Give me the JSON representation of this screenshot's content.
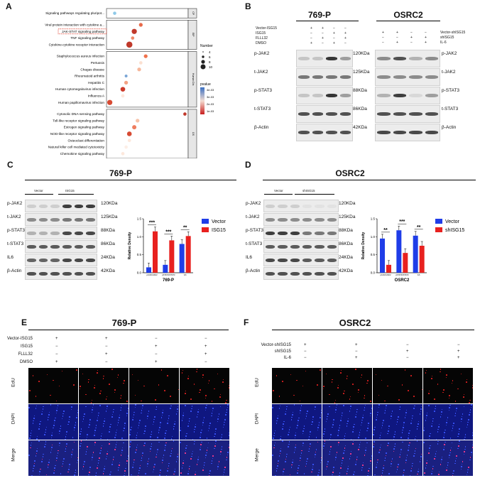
{
  "panels": {
    "A": "A",
    "B": "B",
    "C": "C",
    "D": "D",
    "E": "E",
    "F": "F"
  },
  "panelA": {
    "xlabel": "Enrichment Score",
    "xticks": [
      "3",
      "4",
      "5",
      "6",
      "7"
    ],
    "legend_number_title": "Number",
    "legend_number_values": [
      "4",
      "6",
      "8",
      "10"
    ],
    "legend_pvalue_title": "pvalue",
    "legend_pvalue_values": [
      "4e-03",
      "3e-03",
      "2e-03",
      "1e-03"
    ],
    "groups": [
      "CP",
      "EIP",
      "Human Dis",
      "OS"
    ],
    "pathways": [
      "Signaling pathways regulating pluripot...",
      "Viral protein interaction with cytokine a...",
      "JAK-STAT signaling pathway",
      "TNF signaling pathway",
      "Cytokine-cytokine receptor interaction",
      "Staphylococcus aureus infection",
      "Pertussis",
      "Chagas disease",
      "Rheumatoid arthritis",
      "Hepatitis C",
      "Human cytomegalovirus infection",
      "Influenza A",
      "Human papillomavirus infection",
      "Cytosolic DNA-sensing pathway",
      "Toll-like receptor signaling pathway",
      "Estrogen signaling pathway",
      "NOD-like receptor signaling pathway",
      "Osteoclast differentiation",
      "Natural killer cell mediated cytotoxicity",
      "Chemokine signaling pathway"
    ]
  },
  "panelB": {
    "left_title": "769-P",
    "right_title": "OSRC2",
    "left_conditions": [
      {
        "name": "Vector-ISG15",
        "marks": [
          "+",
          "+",
          "−",
          "−"
        ]
      },
      {
        "name": "ISG15",
        "marks": [
          "−",
          "−",
          "+",
          "+"
        ]
      },
      {
        "name": "FLLL32",
        "marks": [
          "−",
          "+",
          "−",
          "+"
        ]
      },
      {
        "name": "DMSO",
        "marks": [
          "+",
          "−",
          "+",
          "−"
        ]
      }
    ],
    "right_conditions": [
      {
        "name": "Vector-shISG15",
        "marks": [
          "+",
          "+",
          "−",
          "−"
        ]
      },
      {
        "name": "shISG15",
        "marks": [
          "−",
          "−",
          "+",
          "+"
        ]
      },
      {
        "name": "IL-6",
        "marks": [
          "−",
          "+",
          "−",
          "+"
        ]
      }
    ],
    "rows_left": [
      "p-JAK2",
      "t-JAK2",
      "p-STAT3",
      "t-STAT3",
      "β-Actin"
    ],
    "kda": [
      "120KDa",
      "125KDa",
      "88KDa",
      "86KDa",
      "42KDa"
    ],
    "rows_right": [
      "p-JAK2",
      "t-JAK2",
      "p-STAT3",
      "t-STAT3",
      "β-Actin"
    ]
  },
  "panelC": {
    "title": "769-P",
    "group1": "Vector",
    "group2": "ISG15",
    "rows": [
      "p-JAK2",
      "t-JAK2",
      "p-STAT3",
      "t-STAT3",
      "IL6",
      "β-Actin"
    ],
    "kda": [
      "120KDa",
      "125KDa",
      "88KDa",
      "86KDa",
      "24KDa",
      "42KDa"
    ],
    "chart_title": "769-P",
    "ylabel": "Relative Density",
    "legend": [
      "Vector",
      "ISG15"
    ],
    "sig": [
      "***",
      "***",
      "**"
    ]
  },
  "panelD": {
    "title": "OSRC2",
    "group1": "Vector",
    "group2": "shISG15",
    "rows": [
      "p-JAK2",
      "t-JAK2",
      "p-STAT3",
      "t-STAT3",
      "IL6",
      "β-Actin"
    ],
    "kda": [
      "120KDa",
      "125KDa",
      "88KDa",
      "86KDa",
      "24KDa",
      "42KDa"
    ],
    "chart_title": "OSRC2",
    "ylabel": "Relative Density",
    "legend": [
      "Vector",
      "shISG15"
    ],
    "sig": [
      "**",
      "***",
      "**"
    ]
  },
  "panelE": {
    "title": "769-P",
    "conditions": [
      {
        "name": "Vector-ISG15",
        "marks": [
          "+",
          "+",
          "−",
          "−"
        ]
      },
      {
        "name": "ISG15",
        "marks": [
          "−",
          "−",
          "+",
          "+"
        ]
      },
      {
        "name": "FLLL32",
        "marks": [
          "−",
          "+",
          "−",
          "+"
        ]
      },
      {
        "name": "DMSO",
        "marks": [
          "+",
          "−",
          "+",
          "−"
        ]
      }
    ],
    "rows": [
      "EdU",
      "DAPI",
      "Merge"
    ]
  },
  "panelF": {
    "title": "OSRC2",
    "conditions": [
      {
        "name": "Vector-shISG15",
        "marks": [
          "+",
          "+",
          "−",
          "−"
        ]
      },
      {
        "name": "shISG15",
        "marks": [
          "−",
          "−",
          "+",
          "+"
        ]
      },
      {
        "name": "IL-6",
        "marks": [
          "−",
          "+",
          "−",
          "+"
        ]
      }
    ],
    "rows": [
      "EdU",
      "DAPI",
      "Merge"
    ]
  },
  "chart_data": [
    {
      "type": "scatter",
      "xlabel": "Enrichment Score",
      "xlim": [
        2.5,
        7.5
      ],
      "categories": [
        "Signaling pathways regulating pluripot...",
        "Viral protein interaction with cytokine a...",
        "JAK-STAT signaling pathway",
        "TNF signaling pathway",
        "Cytokine-cytokine receptor interaction",
        "Staphylococcus aureus infection",
        "Pertussis",
        "Chagas disease",
        "Rheumatoid arthritis",
        "Hepatitis C",
        "Human cytomegalovirus infection",
        "Influenza A",
        "Human papillomavirus infection",
        "Cytosolic DNA-sensing pathway",
        "Toll-like receptor signaling pathway",
        "Estrogen signaling pathway",
        "NOD-like receptor signaling pathway",
        "Osteoclast differentiation",
        "Natural killer cell mediated cytotoxicity",
        "Chemokine signaling pathway"
      ],
      "x": [
        3.0,
        4.6,
        4.2,
        4.1,
        3.9,
        4.9,
        4.6,
        4.5,
        3.7,
        3.7,
        3.5,
        3.5,
        2.7,
        7.3,
        4.4,
        4.2,
        3.9,
        3.9,
        3.7,
        3.5
      ],
      "size": [
        4,
        5,
        8,
        4,
        10,
        5,
        4,
        5,
        3,
        5,
        7,
        4,
        8,
        4,
        5,
        6,
        7,
        4,
        4,
        4
      ],
      "color": [
        "#8ec9e8",
        "#e86a4a",
        "#c0392b",
        "#f08a6a",
        "#c0392b",
        "#f0724c",
        "#fbe0d0",
        "#f6b79a",
        "#7aa6d6",
        "#f3a283",
        "#cc3a2a",
        "#fde8dc",
        "#d74a33",
        "#c0392b",
        "#f7c2a8",
        "#ee7d5f",
        "#d74a33",
        "#fde8dc",
        "#fdeee6",
        "#fde8dc"
      ]
    },
    {
      "type": "bar",
      "title": "769-P",
      "ylabel": "Relative Density",
      "ylim": [
        0,
        1.5
      ],
      "categories": [
        "pJAK2/tJAK2",
        "pSTAT3/tSTAT3",
        "IL6"
      ],
      "series": [
        {
          "name": "Vector",
          "values": [
            0.15,
            0.22,
            0.8
          ],
          "color": "#1f3de8"
        },
        {
          "name": "ISG15",
          "values": [
            1.15,
            0.9,
            1.02
          ],
          "color": "#e8211f"
        }
      ]
    },
    {
      "type": "bar",
      "title": "OSRC2",
      "ylabel": "Relative Density",
      "ylim": [
        0,
        1.5
      ],
      "categories": [
        "pJAK2/tJAK2",
        "pSTAT3/tSTAT3",
        "IL6"
      ],
      "series": [
        {
          "name": "Vector",
          "values": [
            0.95,
            1.18,
            1.03
          ],
          "color": "#1f3de8"
        },
        {
          "name": "shISG15",
          "values": [
            0.22,
            0.55,
            0.75
          ],
          "color": "#e8211f"
        }
      ]
    }
  ]
}
